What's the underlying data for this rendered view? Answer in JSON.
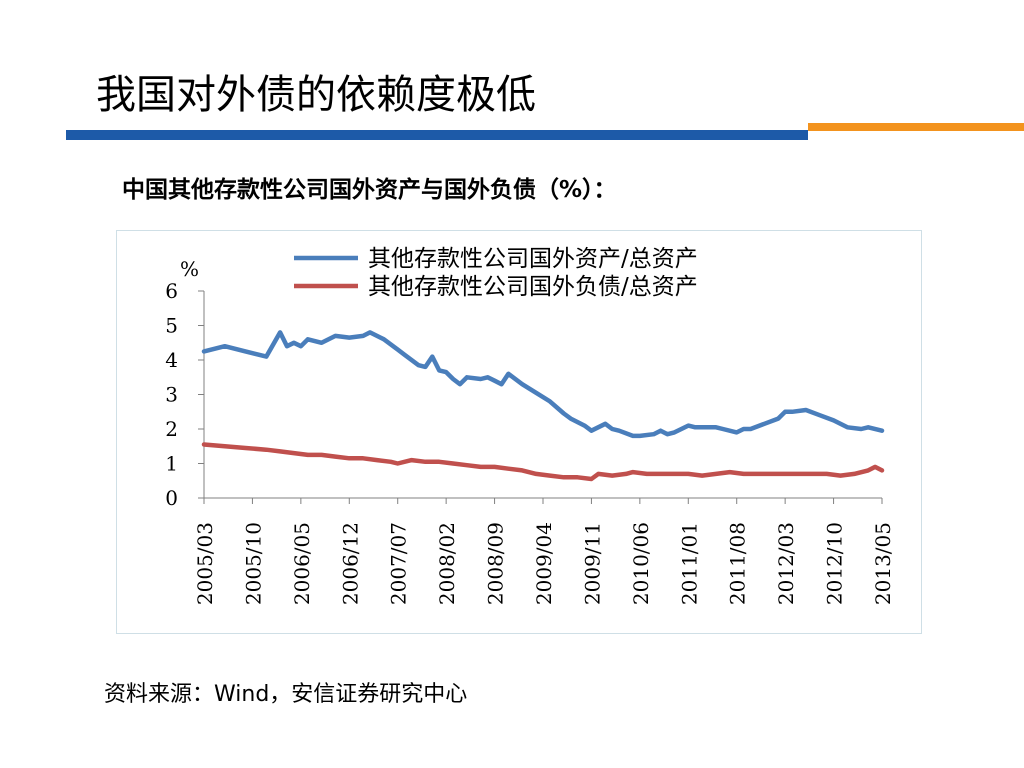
{
  "page": {
    "title": "我国对外债的依赖度极低",
    "subtitle": "中国其他存款性公司国外资产与国外负债（%）：",
    "source": "资料来源：Wind，安信证券研究中心",
    "band_colors": {
      "blue": "#1d5aa8",
      "orange": "#f3931e"
    }
  },
  "chart_data": {
    "type": "line",
    "title": "",
    "xlabel": "",
    "ylabel": "%",
    "ylim": [
      0,
      6
    ],
    "yticks": [
      0,
      1,
      2,
      3,
      4,
      5,
      6
    ],
    "x_tick_labels": [
      "2005/03",
      "2005/10",
      "2006/05",
      "2006/12",
      "2007/07",
      "2008/02",
      "2008/09",
      "2009/04",
      "2009/11",
      "2010/06",
      "2011/01",
      "2011/08",
      "2012/03",
      "2012/10",
      "2013/05"
    ],
    "grid": false,
    "legend_position": "top",
    "series": [
      {
        "name": "其他存款性公司国外资产/总资产",
        "color": "#4a7ebb",
        "x": [
          "2005/03",
          "2005/06",
          "2005/09",
          "2005/12",
          "2006/01",
          "2006/02",
          "2006/03",
          "2006/04",
          "2006/05",
          "2006/06",
          "2006/08",
          "2006/10",
          "2006/12",
          "2007/02",
          "2007/03",
          "2007/05",
          "2007/07",
          "2007/08",
          "2007/10",
          "2007/11",
          "2007/12",
          "2008/01",
          "2008/02",
          "2008/03",
          "2008/04",
          "2008/05",
          "2008/07",
          "2008/08",
          "2008/09",
          "2008/10",
          "2008/11",
          "2009/01",
          "2009/03",
          "2009/05",
          "2009/07",
          "2009/08",
          "2009/10",
          "2009/11",
          "2010/01",
          "2010/02",
          "2010/03",
          "2010/05",
          "2010/06",
          "2010/08",
          "2010/09",
          "2010/10",
          "2010/11",
          "2011/01",
          "2011/02",
          "2011/03",
          "2011/05",
          "2011/06",
          "2011/08",
          "2011/09",
          "2011/10",
          "2011/12",
          "2012/02",
          "2012/03",
          "2012/04",
          "2012/06",
          "2012/08",
          "2012/10",
          "2012/12",
          "2013/02",
          "2013/03",
          "2013/05"
        ],
        "values": [
          4.25,
          4.4,
          4.25,
          4.1,
          4.45,
          4.8,
          4.4,
          4.5,
          4.4,
          4.6,
          4.5,
          4.7,
          4.65,
          4.7,
          4.8,
          4.6,
          4.3,
          4.15,
          3.85,
          3.8,
          4.1,
          3.7,
          3.65,
          3.45,
          3.3,
          3.5,
          3.45,
          3.5,
          3.4,
          3.3,
          3.6,
          3.3,
          3.05,
          2.8,
          2.45,
          2.3,
          2.1,
          1.95,
          2.15,
          2.0,
          1.95,
          1.8,
          1.8,
          1.85,
          1.95,
          1.85,
          1.9,
          2.1,
          2.05,
          2.05,
          2.05,
          2.0,
          1.9,
          2.0,
          2.0,
          2.15,
          2.3,
          2.5,
          2.5,
          2.55,
          2.4,
          2.25,
          2.05,
          2.0,
          2.05,
          1.95
        ]
      },
      {
        "name": "其他存款性公司国外负债/总资产",
        "color": "#c0504d",
        "x": [
          "2005/03",
          "2005/06",
          "2005/09",
          "2005/12",
          "2006/02",
          "2006/04",
          "2006/06",
          "2006/08",
          "2006/10",
          "2006/12",
          "2007/02",
          "2007/04",
          "2007/06",
          "2007/07",
          "2007/09",
          "2007/11",
          "2008/01",
          "2008/03",
          "2008/05",
          "2008/07",
          "2008/09",
          "2008/11",
          "2009/01",
          "2009/03",
          "2009/05",
          "2009/07",
          "2009/09",
          "2009/11",
          "2009/12",
          "2010/02",
          "2010/04",
          "2010/05",
          "2010/07",
          "2010/09",
          "2010/11",
          "2011/01",
          "2011/03",
          "2011/05",
          "2011/07",
          "2011/09",
          "2011/11",
          "2012/01",
          "2012/03",
          "2012/05",
          "2012/07",
          "2012/09",
          "2012/11",
          "2013/01",
          "2013/03",
          "2013/04",
          "2013/05"
        ],
        "values": [
          1.55,
          1.5,
          1.45,
          1.4,
          1.35,
          1.3,
          1.25,
          1.25,
          1.2,
          1.15,
          1.15,
          1.1,
          1.05,
          1.0,
          1.1,
          1.05,
          1.05,
          1.0,
          0.95,
          0.9,
          0.9,
          0.85,
          0.8,
          0.7,
          0.65,
          0.6,
          0.6,
          0.55,
          0.7,
          0.65,
          0.7,
          0.75,
          0.7,
          0.7,
          0.7,
          0.7,
          0.65,
          0.7,
          0.75,
          0.7,
          0.7,
          0.7,
          0.7,
          0.7,
          0.7,
          0.7,
          0.65,
          0.7,
          0.8,
          0.9,
          0.8
        ]
      }
    ]
  }
}
